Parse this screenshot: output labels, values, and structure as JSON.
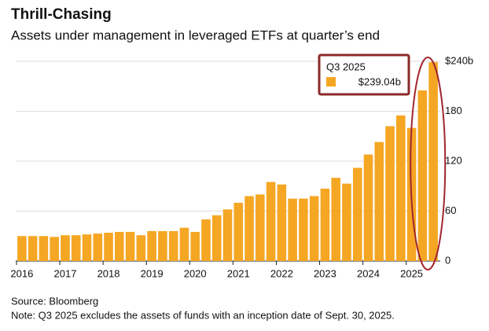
{
  "chart_data": {
    "type": "bar",
    "title": "Thrill-Chasing",
    "subtitle": "Assets under management in leveraged ETFs at quarter’s end",
    "categories": [
      "2016",
      null,
      null,
      null,
      "2017",
      null,
      null,
      null,
      "2018",
      null,
      null,
      null,
      "2019",
      null,
      null,
      null,
      "2020",
      null,
      null,
      null,
      "2021",
      null,
      null,
      null,
      "2022",
      null,
      null,
      null,
      "2023",
      null,
      null,
      null,
      "2024",
      null,
      null,
      null,
      "2025",
      null,
      null
    ],
    "values": [
      30,
      30,
      30,
      29,
      31,
      31,
      32,
      33,
      34,
      35,
      35,
      31,
      36,
      36,
      36,
      40,
      35,
      50,
      55,
      62,
      70,
      78,
      80,
      95,
      92,
      75,
      75,
      78,
      87,
      100,
      93,
      112,
      128,
      143,
      162,
      175,
      160,
      205,
      239.04
    ],
    "value_labels": [
      null,
      null,
      null,
      null,
      null,
      null,
      null,
      null,
      null,
      null,
      null,
      null,
      null,
      null,
      null,
      null,
      null,
      null,
      null,
      null,
      null,
      null,
      null,
      null,
      null,
      null,
      null,
      null,
      null,
      null,
      null,
      null,
      null,
      null,
      null,
      null,
      null,
      null,
      "$239.04b"
    ],
    "tooltip_title": "Q3 2025",
    "color": "#f5a623",
    "ylim": [
      0,
      240
    ],
    "yticks": [
      0,
      60,
      120,
      180,
      {
        "value": 240,
        "label": "$240b"
      }
    ],
    "grid": true,
    "source": "Source: Bloomberg",
    "note": "Note: Q3 2025 excludes the assets of funds with an inception date of Sept. 30, 2025."
  }
}
